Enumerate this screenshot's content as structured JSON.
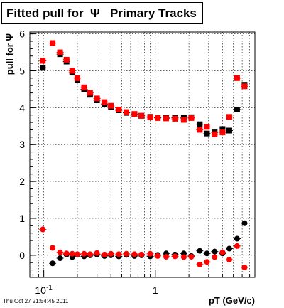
{
  "chart_data": {
    "type": "scatter",
    "title": "Fitted pull for  Ψ   Primary Tracks",
    "xlabel": "pT (GeV/c)",
    "ylabel": "pull for Ψ",
    "xscale": "log",
    "xlim": [
      0.075,
      7.8
    ],
    "ylim": [
      -0.6,
      6.05
    ],
    "xticks": [
      {
        "value": 0.1,
        "base": "10",
        "exp": "-1"
      },
      {
        "value": 1,
        "base": "1",
        "exp": ""
      }
    ],
    "yticks": [
      0,
      1,
      2,
      3,
      4,
      5,
      6
    ],
    "grid": true,
    "series": [
      {
        "color": "#000000",
        "marker": "square",
        "points": [
          [
            0.098,
            5.08
          ],
          [
            0.12,
            5.75
          ],
          [
            0.14,
            5.45
          ],
          [
            0.16,
            5.25
          ],
          [
            0.18,
            4.95
          ],
          [
            0.2,
            4.75
          ],
          [
            0.23,
            4.5
          ],
          [
            0.26,
            4.35
          ],
          [
            0.3,
            4.2
          ],
          [
            0.35,
            4.1
          ],
          [
            0.4,
            4.02
          ],
          [
            0.47,
            3.93
          ],
          [
            0.55,
            3.86
          ],
          [
            0.65,
            3.82
          ],
          [
            0.75,
            3.78
          ],
          [
            0.9,
            3.75
          ],
          [
            1.05,
            3.73
          ],
          [
            1.25,
            3.72
          ],
          [
            1.5,
            3.73
          ],
          [
            1.8,
            3.72
          ],
          [
            2.1,
            3.74
          ],
          [
            2.5,
            3.55
          ],
          [
            2.9,
            3.3
          ],
          [
            3.4,
            3.33
          ],
          [
            4.0,
            3.42
          ],
          [
            4.6,
            3.38
          ],
          [
            5.4,
            3.95
          ],
          [
            6.3,
            4.62
          ]
        ]
      },
      {
        "color": "#ff0000",
        "marker": "square",
        "points": [
          [
            0.098,
            5.27
          ],
          [
            0.12,
            5.75
          ],
          [
            0.14,
            5.5
          ],
          [
            0.16,
            5.3
          ],
          [
            0.18,
            5.0
          ],
          [
            0.2,
            4.8
          ],
          [
            0.23,
            4.55
          ],
          [
            0.26,
            4.4
          ],
          [
            0.3,
            4.25
          ],
          [
            0.35,
            4.15
          ],
          [
            0.4,
            4.05
          ],
          [
            0.47,
            3.95
          ],
          [
            0.55,
            3.88
          ],
          [
            0.65,
            3.83
          ],
          [
            0.75,
            3.78
          ],
          [
            0.9,
            3.74
          ],
          [
            1.05,
            3.72
          ],
          [
            1.25,
            3.71
          ],
          [
            1.5,
            3.7
          ],
          [
            1.8,
            3.67
          ],
          [
            2.1,
            3.72
          ],
          [
            2.5,
            3.4
          ],
          [
            2.9,
            3.48
          ],
          [
            3.4,
            3.28
          ],
          [
            4.0,
            3.33
          ],
          [
            4.6,
            3.75
          ],
          [
            5.4,
            4.8
          ],
          [
            6.3,
            4.58
          ]
        ]
      },
      {
        "color": "#000000",
        "marker": "circle",
        "points": [
          [
            0.12,
            -0.22
          ],
          [
            0.14,
            -0.08
          ],
          [
            0.16,
            0.02
          ],
          [
            0.18,
            -0.05
          ],
          [
            0.2,
            0.02
          ],
          [
            0.23,
            -0.03
          ],
          [
            0.26,
            0.0
          ],
          [
            0.3,
            0.02
          ],
          [
            0.35,
            -0.02
          ],
          [
            0.4,
            0.0
          ],
          [
            0.47,
            -0.03
          ],
          [
            0.55,
            0.01
          ],
          [
            0.65,
            -0.02
          ],
          [
            0.75,
            0.0
          ],
          [
            0.9,
            -0.03
          ],
          [
            1.05,
            0.01
          ],
          [
            1.25,
            0.05
          ],
          [
            1.5,
            0.02
          ],
          [
            1.8,
            0.05
          ],
          [
            2.1,
            -0.02
          ],
          [
            2.5,
            0.12
          ],
          [
            2.9,
            0.05
          ],
          [
            3.4,
            0.1
          ],
          [
            4.0,
            0.05
          ],
          [
            4.6,
            0.18
          ],
          [
            5.4,
            0.45
          ],
          [
            6.3,
            0.87
          ]
        ]
      },
      {
        "color": "#ff0000",
        "marker": "circle",
        "points": [
          [
            0.098,
            0.7
          ],
          [
            0.12,
            0.2
          ],
          [
            0.14,
            0.08
          ],
          [
            0.16,
            0.05
          ],
          [
            0.18,
            0.04
          ],
          [
            0.2,
            0.03
          ],
          [
            0.23,
            0.04
          ],
          [
            0.26,
            0.03
          ],
          [
            0.3,
            0.06
          ],
          [
            0.35,
            0.02
          ],
          [
            0.4,
            0.04
          ],
          [
            0.47,
            0.03
          ],
          [
            0.55,
            0.04
          ],
          [
            0.65,
            0.03
          ],
          [
            0.75,
            0.02
          ],
          [
            0.9,
            0.04
          ],
          [
            1.05,
            -0.02
          ],
          [
            1.25,
            -0.04
          ],
          [
            1.5,
            -0.03
          ],
          [
            1.8,
            -0.05
          ],
          [
            2.1,
            -0.04
          ],
          [
            2.5,
            -0.25
          ],
          [
            2.9,
            -0.18
          ],
          [
            3.4,
            -0.05
          ],
          [
            4.0,
            0.08
          ],
          [
            4.6,
            -0.12
          ],
          [
            5.4,
            0.25
          ],
          [
            6.3,
            -0.33
          ]
        ]
      }
    ],
    "timestamp": "Thu Oct 27 21:54:45 2011"
  }
}
